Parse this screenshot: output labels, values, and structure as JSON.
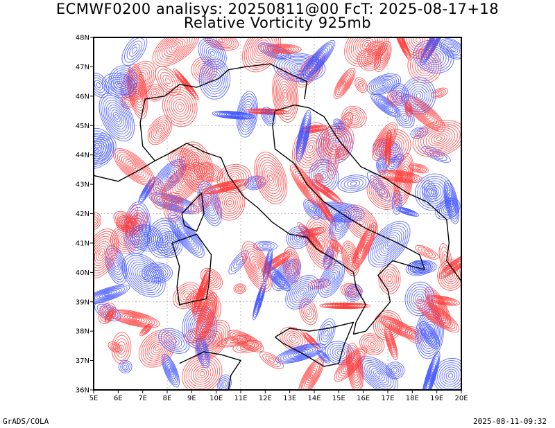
{
  "title_line1": "ECMWF0200 analisys: 20250811@00 FcT: 2025-08-17+18",
  "title_line2": "Relative Vorticity 925mb",
  "footer_left": "GrADS/COLA",
  "footer_right": "2025-08-11-09:32",
  "map": {
    "lon_range": [
      5,
      20
    ],
    "lat_range": [
      36,
      48
    ],
    "lon_ticks": [
      "5E",
      "6E",
      "7E",
      "8E",
      "9E",
      "10E",
      "11E",
      "12E",
      "13E",
      "14E",
      "15E",
      "16E",
      "17E",
      "18E",
      "19E",
      "20E"
    ],
    "lat_ticks": [
      "36N",
      "37N",
      "38N",
      "39N",
      "40N",
      "41N",
      "42N",
      "43N",
      "44N",
      "45N",
      "46N",
      "47N",
      "48N"
    ],
    "positive_color": "#ff3c3c",
    "negative_color": "#3c50ff",
    "coastline_color": "#000000"
  }
}
